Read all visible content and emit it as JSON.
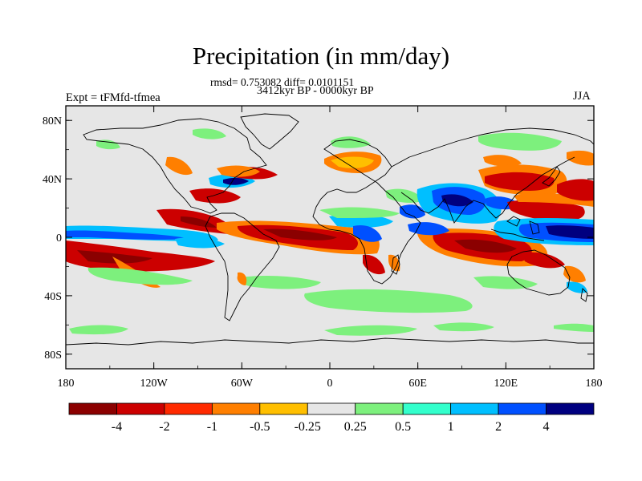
{
  "figure": {
    "title": "Precipitation (in mm/day)",
    "stats_line": "rmsd= 0.753082 diff= 0.0101151",
    "period_line": "3412kyr BP - 0000kyr BP",
    "experiment_label": "Expt = tFMfd-tfmea",
    "season_label": "JJA"
  },
  "map": {
    "projection": "cylindrical-equidistant",
    "lon_range": [
      -180,
      180
    ],
    "lat_range": [
      -90,
      90
    ],
    "lon_ticks": [
      {
        "value": -180,
        "label": "180"
      },
      {
        "value": -120,
        "label": "120W"
      },
      {
        "value": -60,
        "label": "60W"
      },
      {
        "value": 0,
        "label": "0"
      },
      {
        "value": 60,
        "label": "60E"
      },
      {
        "value": 120,
        "label": "120E"
      },
      {
        "value": 180,
        "label": "180"
      }
    ],
    "lat_ticks": [
      {
        "value": 80,
        "label": "80N"
      },
      {
        "value": 40,
        "label": "40N"
      },
      {
        "value": 0,
        "label": "0"
      },
      {
        "value": -40,
        "label": "40S"
      },
      {
        "value": -80,
        "label": "80S"
      }
    ],
    "background_color": "#e6e6e6",
    "coastline_color": "#000000"
  },
  "colorbar": {
    "levels": [
      "-4",
      "-2",
      "-1",
      "-0.5",
      "-0.25",
      "0.25",
      "0.5",
      "1",
      "2",
      "4"
    ],
    "colors": [
      "#8b0000",
      "#cc0000",
      "#ff2a00",
      "#ff7f00",
      "#ffbf00",
      "#e6e6e6",
      "#7df07d",
      "#33ffcc",
      "#00bfff",
      "#0050ff",
      "#000080"
    ]
  },
  "anomaly_regions": [
    {
      "name": "tropical-pacific-south-negative",
      "lon": -150,
      "lat": -5,
      "level": "-4"
    },
    {
      "name": "tropical-pacific-equator-positive",
      "lon": -150,
      "lat": 2,
      "level": "2"
    },
    {
      "name": "east-pacific-itcz-positive",
      "lon": -110,
      "lat": 6,
      "level": "4"
    },
    {
      "name": "central-america-negative",
      "lon": -90,
      "lat": 15,
      "level": "-2"
    },
    {
      "name": "atlantic-itcz-negative",
      "lon": -30,
      "lat": 5,
      "level": "-4"
    },
    {
      "name": "atlantic-south-positive",
      "lon": -20,
      "lat": -3,
      "level": "1"
    },
    {
      "name": "west-africa-positive",
      "lon": 0,
      "lat": 8,
      "level": "1"
    },
    {
      "name": "gulf-of-guinea-negative",
      "lon": 5,
      "lat": -5,
      "level": "-2"
    },
    {
      "name": "europe-negative",
      "lon": 20,
      "lat": 47,
      "level": "-0.5"
    },
    {
      "name": "east-africa-positive",
      "lon": 40,
      "lat": 5,
      "level": "2"
    },
    {
      "name": "indian-ocean-negative",
      "lon": 90,
      "lat": -5,
      "level": "-4"
    },
    {
      "name": "india-positive",
      "lon": 80,
      "lat": 22,
      "level": "2"
    },
    {
      "name": "east-asia-negative",
      "lon": 115,
      "lat": 27,
      "level": "-2"
    },
    {
      "name": "maritime-continent-negative",
      "lon": 125,
      "lat": -5,
      "level": "-4"
    },
    {
      "name": "west-pacific-positive",
      "lon": 155,
      "lat": 2,
      "level": "4"
    },
    {
      "name": "north-pacific-negative",
      "lon": 170,
      "lat": 32,
      "level": "-2"
    },
    {
      "name": "southern-ocean-positive",
      "lon": 10,
      "lat": -43,
      "level": "0.25"
    }
  ]
}
